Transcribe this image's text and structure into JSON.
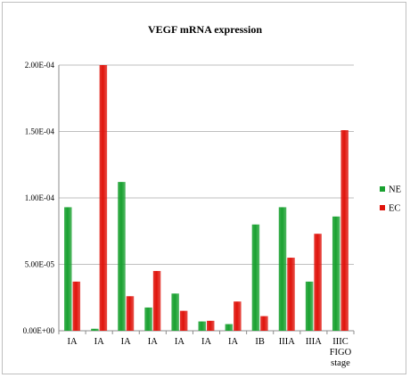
{
  "chart_data": {
    "type": "bar",
    "title": "VEGF mRNA expression",
    "categories": [
      "IA",
      "IA",
      "IA",
      "IA",
      "IA",
      "IA",
      "IA",
      "IB",
      "IIIA",
      "IIIA",
      "IIIC"
    ],
    "x_axis_extra_label": [
      "FIGO",
      "stage"
    ],
    "series": [
      {
        "name": "NE",
        "color": "#19a130",
        "values": [
          9.3e-05,
          1.5e-06,
          0.000112,
          1.75e-05,
          2.8e-05,
          7e-06,
          5e-06,
          8e-05,
          9.3e-05,
          3.7e-05,
          8.6e-05
        ]
      },
      {
        "name": "EC",
        "color": "#e0140c",
        "values": [
          3.7e-05,
          0.0002,
          2.6e-05,
          4.5e-05,
          1.5e-05,
          7.5e-06,
          2.2e-05,
          1.1e-05,
          5.5e-05,
          7.3e-05,
          0.000151
        ]
      }
    ],
    "yticks": [
      0,
      5e-05,
      0.0001,
      0.00015,
      0.0002
    ],
    "ytick_labels": [
      "0.00E+00",
      "5.00E-05",
      "1.00E-04",
      "1.50E-04",
      "2.00E-04"
    ],
    "ylim": [
      0,
      0.0002
    ],
    "grid": true,
    "legend_position": "right"
  }
}
